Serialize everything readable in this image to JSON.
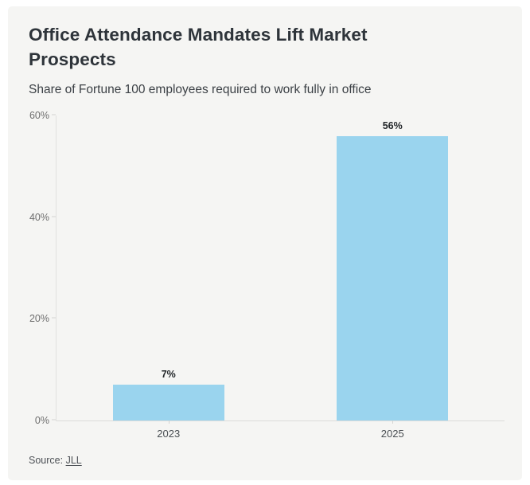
{
  "header": {
    "title": "Office Attendance Mandates Lift Market Prospects",
    "subtitle": "Share of Fortune 100 employees required to work fully in office"
  },
  "source": {
    "label": "Source:",
    "link_text": "JLL"
  },
  "colors": {
    "bar": "#9ad4ee",
    "card_background": "#f5f5f3",
    "title_text": "#2e343a",
    "axis_line": "#e2e2e0"
  },
  "chart_data": {
    "type": "bar",
    "title": "Office Attendance Mandates Lift Market Prospects",
    "subtitle": "Share of Fortune 100 employees required to work fully in office",
    "categories": [
      "2023",
      "2025"
    ],
    "values": [
      7,
      56
    ],
    "value_labels": [
      "7%",
      "56%"
    ],
    "xlabel": "",
    "ylabel": "",
    "ylim": [
      0,
      60
    ],
    "yticks": [
      0,
      20,
      40,
      60
    ],
    "ytick_labels": [
      "0%",
      "20%",
      "40%",
      "60%"
    ],
    "grid": false,
    "legend": false,
    "bar_color": "#9ad4ee"
  }
}
